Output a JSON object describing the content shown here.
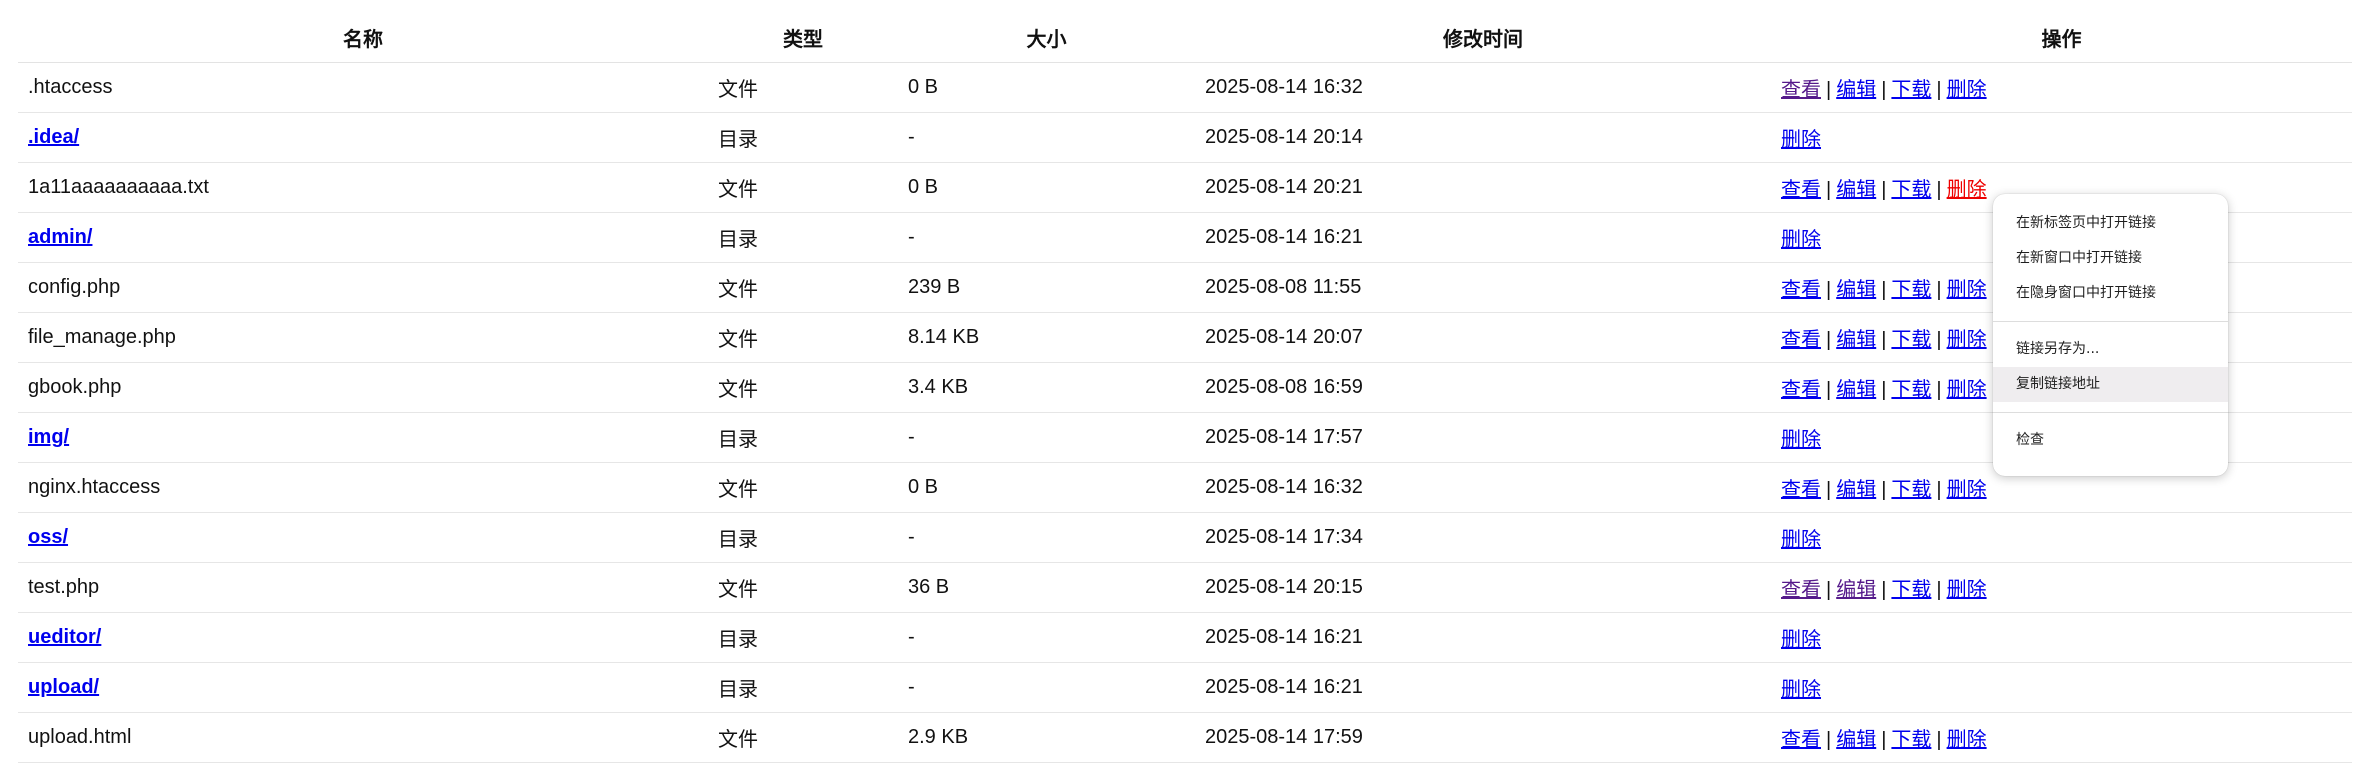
{
  "table": {
    "headers": [
      "名称",
      "类型",
      "大小",
      "修改时间",
      "操作"
    ],
    "rows": [
      {
        "name": ".htaccess",
        "is_dir": false,
        "type": "文件",
        "size": "0 B",
        "mtime": "2025-08-14 16:32",
        "ops": [
          "查看",
          "编辑",
          "下载",
          "删除"
        ],
        "visited": [
          true,
          false,
          false,
          false
        ],
        "active": [
          false,
          false,
          false,
          false
        ]
      },
      {
        "name": ".idea/",
        "is_dir": true,
        "type": "目录",
        "size": "-",
        "mtime": "2025-08-14 20:14",
        "ops": [
          "删除"
        ],
        "visited": [
          false
        ],
        "active": [
          false
        ]
      },
      {
        "name": "1a11aaaaaaaaaa.txt",
        "is_dir": false,
        "type": "文件",
        "size": "0 B",
        "mtime": "2025-08-14 20:21",
        "ops": [
          "查看",
          "编辑",
          "下载",
          "删除"
        ],
        "visited": [
          false,
          false,
          false,
          false
        ],
        "active": [
          false,
          false,
          false,
          true
        ]
      },
      {
        "name": "admin/",
        "is_dir": true,
        "type": "目录",
        "size": "-",
        "mtime": "2025-08-14 16:21",
        "ops": [
          "删除"
        ],
        "visited": [
          false
        ],
        "active": [
          false
        ]
      },
      {
        "name": "config.php",
        "is_dir": false,
        "type": "文件",
        "size": "239 B",
        "mtime": "2025-08-08 11:55",
        "ops": [
          "查看",
          "编辑",
          "下载",
          "删除"
        ],
        "visited": [
          false,
          false,
          false,
          false
        ],
        "active": [
          false,
          false,
          false,
          false
        ]
      },
      {
        "name": "file_manage.php",
        "is_dir": false,
        "type": "文件",
        "size": "8.14 KB",
        "mtime": "2025-08-14 20:07",
        "ops": [
          "查看",
          "编辑",
          "下载",
          "删除"
        ],
        "visited": [
          false,
          false,
          false,
          false
        ],
        "active": [
          false,
          false,
          false,
          false
        ]
      },
      {
        "name": "gbook.php",
        "is_dir": false,
        "type": "文件",
        "size": "3.4 KB",
        "mtime": "2025-08-08 16:59",
        "ops": [
          "查看",
          "编辑",
          "下载",
          "删除"
        ],
        "visited": [
          false,
          false,
          false,
          false
        ],
        "active": [
          false,
          false,
          false,
          false
        ]
      },
      {
        "name": "img/",
        "is_dir": true,
        "type": "目录",
        "size": "-",
        "mtime": "2025-08-14 17:57",
        "ops": [
          "删除"
        ],
        "visited": [
          false
        ],
        "active": [
          false
        ]
      },
      {
        "name": "nginx.htaccess",
        "is_dir": false,
        "type": "文件",
        "size": "0 B",
        "mtime": "2025-08-14 16:32",
        "ops": [
          "查看",
          "编辑",
          "下载",
          "删除"
        ],
        "visited": [
          false,
          false,
          false,
          false
        ],
        "active": [
          false,
          false,
          false,
          false
        ]
      },
      {
        "name": "oss/",
        "is_dir": true,
        "type": "目录",
        "size": "-",
        "mtime": "2025-08-14 17:34",
        "ops": [
          "删除"
        ],
        "visited": [
          false
        ],
        "active": [
          false
        ]
      },
      {
        "name": "test.php",
        "is_dir": false,
        "type": "文件",
        "size": "36 B",
        "mtime": "2025-08-14 20:15",
        "ops": [
          "查看",
          "编辑",
          "下载",
          "删除"
        ],
        "visited": [
          true,
          true,
          false,
          false
        ],
        "active": [
          false,
          false,
          false,
          false
        ]
      },
      {
        "name": "ueditor/",
        "is_dir": true,
        "type": "目录",
        "size": "-",
        "mtime": "2025-08-14 16:21",
        "ops": [
          "删除"
        ],
        "visited": [
          false
        ],
        "active": [
          false
        ]
      },
      {
        "name": "upload/",
        "is_dir": true,
        "type": "目录",
        "size": "-",
        "mtime": "2025-08-14 16:21",
        "ops": [
          "删除"
        ],
        "visited": [
          false
        ],
        "active": [
          false
        ]
      },
      {
        "name": "upload.html",
        "is_dir": false,
        "type": "文件",
        "size": "2.9 KB",
        "mtime": "2025-08-14 17:59",
        "ops": [
          "查看",
          "编辑",
          "下载",
          "删除"
        ],
        "visited": [
          false,
          false,
          false,
          false
        ],
        "active": [
          false,
          false,
          false,
          false
        ]
      }
    ],
    "separator": "|"
  },
  "context_menu": {
    "groups": [
      [
        "在新标签页中打开链接",
        "在新窗口中打开链接",
        "在隐身窗口中打开链接"
      ],
      [
        "链接另存为...",
        "复制链接地址"
      ],
      [
        "检查"
      ]
    ],
    "hovered_item": "复制链接地址"
  },
  "colors": {
    "link": "#0000ee",
    "visited_link": "#551a8b",
    "active_link": "#ee0000",
    "menu_hover": "#efedef"
  }
}
